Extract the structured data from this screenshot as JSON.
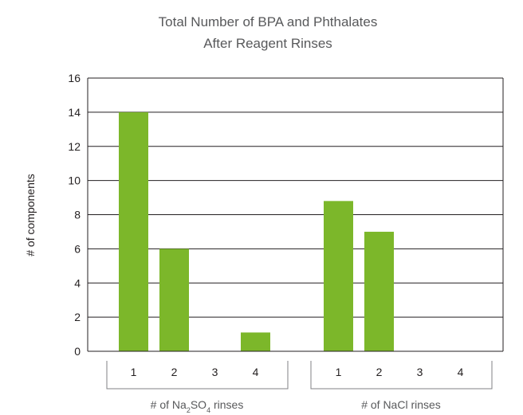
{
  "chart_data": {
    "type": "bar",
    "title_lines": [
      "Total Number of BPA and Phthalates",
      "After Reagent Rinses"
    ],
    "ylabel": "# of components",
    "ylim": [
      0,
      16
    ],
    "yticks": [
      0,
      2,
      4,
      6,
      8,
      10,
      12,
      14,
      16
    ],
    "grid": true,
    "groups": [
      {
        "label_parts": [
          "# of Na",
          "2",
          "SO",
          "4",
          " rinses"
        ],
        "categories": [
          "1",
          "2",
          "3",
          "4"
        ],
        "values": [
          14,
          6,
          0,
          1.1
        ]
      },
      {
        "label_parts": [
          "# of NaCl rinses"
        ],
        "categories": [
          "1",
          "2",
          "3",
          "4"
        ],
        "values": [
          8.8,
          7,
          0,
          0
        ]
      }
    ],
    "bar_color": "#7cb72a",
    "axis_color": "#231f20",
    "bracket_color": "#808285"
  }
}
